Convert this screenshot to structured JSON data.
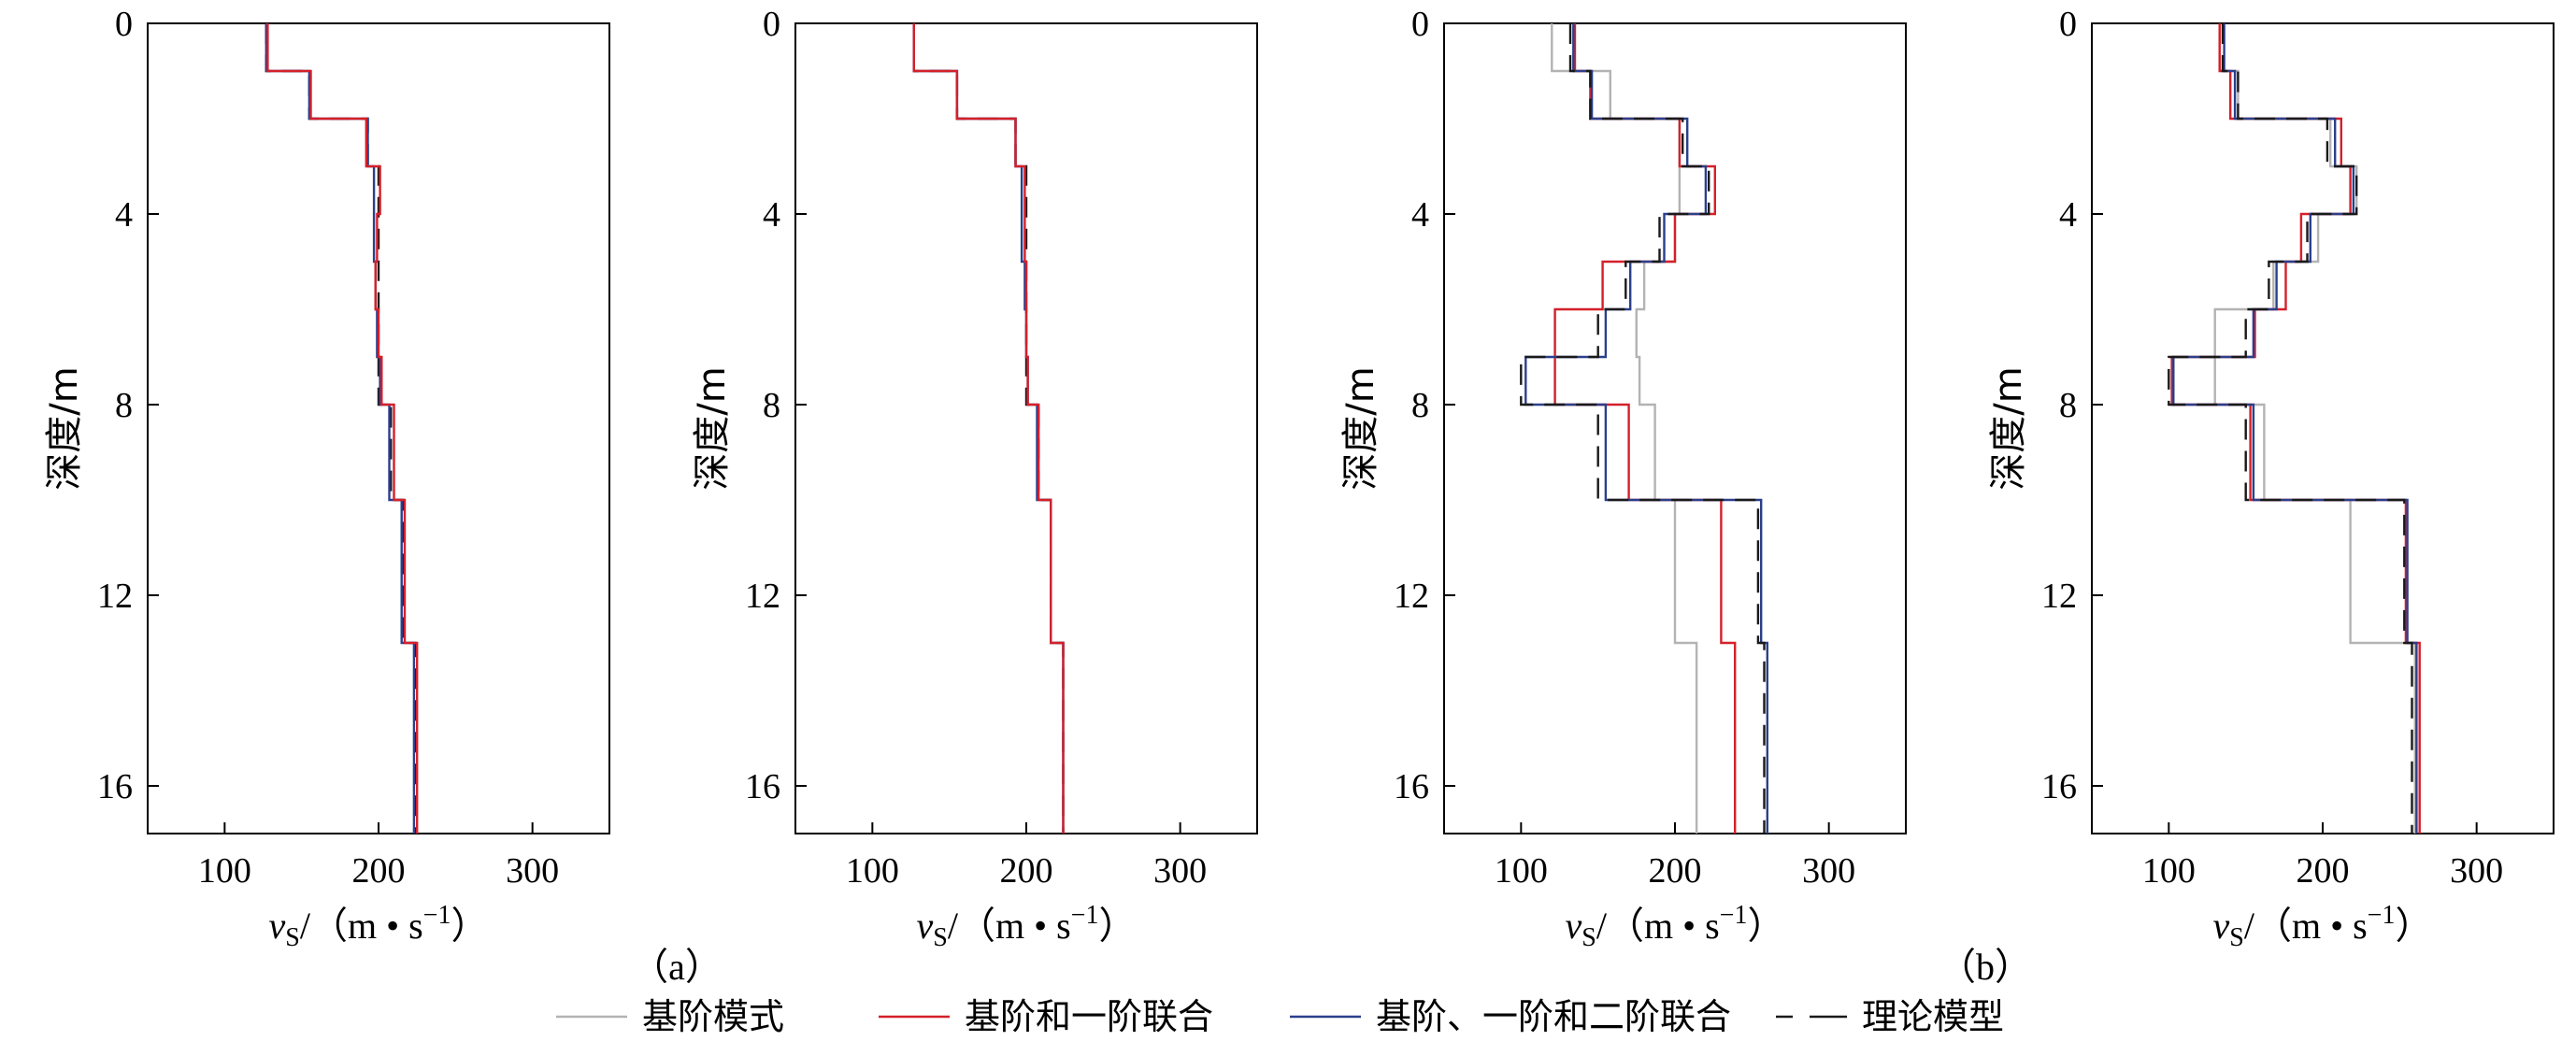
{
  "chart_data": [
    {
      "type": "line",
      "ylabel": "深度/m",
      "xlabel_main": "v",
      "xlabel_sub": "S",
      "xlabel_unit": "/（m • s",
      "xlabel_exp": "−1",
      "xlabel_close": "）",
      "xlim": [
        50,
        350
      ],
      "ylim": [
        0,
        17
      ],
      "xticks": [
        100,
        200,
        300
      ],
      "yticks": [
        0,
        4,
        8,
        12,
        16
      ],
      "yinverted": true,
      "series": [
        {
          "key": "model",
          "color": "#1a1a1a",
          "dash": "22,12",
          "layers": [
            [
              0,
              1,
              127
            ],
            [
              1,
              2,
              155
            ],
            [
              2,
              3,
              193
            ],
            [
              3,
              6,
              200
            ],
            [
              6,
              8,
              200
            ],
            [
              8,
              10,
              208
            ],
            [
              10,
              13,
              216
            ],
            [
              13,
              17,
              224
            ]
          ]
        },
        {
          "key": "mode012",
          "color": "#2b3f8c",
          "dash": "",
          "layers": [
            [
              0,
              1,
              127
            ],
            [
              1,
              2,
              155
            ],
            [
              2,
              3,
              193
            ],
            [
              3,
              5,
              197
            ],
            [
              5,
              6,
              198
            ],
            [
              6,
              7,
              199
            ],
            [
              7,
              8,
              201
            ],
            [
              8,
              10,
              207
            ],
            [
              10,
              13,
              215
            ],
            [
              13,
              17,
              223
            ]
          ]
        },
        {
          "key": "mode01",
          "color": "#d4202a",
          "dash": "",
          "layers": [
            [
              0,
              1,
              128
            ],
            [
              1,
              2,
              156
            ],
            [
              2,
              3,
              192
            ],
            [
              3,
              4,
              201
            ],
            [
              4,
              5,
              199
            ],
            [
              5,
              6,
              198
            ],
            [
              6,
              7,
              200
            ],
            [
              7,
              8,
              202
            ],
            [
              8,
              10,
              210
            ],
            [
              10,
              13,
              217
            ],
            [
              13,
              17,
              225
            ]
          ]
        }
      ]
    },
    {
      "type": "line",
      "ylabel": "深度/m",
      "xlabel_main": "v",
      "xlabel_sub": "S",
      "xlabel_unit": "/（m • s",
      "xlabel_exp": "−1",
      "xlabel_close": "）",
      "xlim": [
        50,
        350
      ],
      "ylim": [
        0,
        17
      ],
      "xticks": [
        100,
        200,
        300
      ],
      "yticks": [
        0,
        4,
        8,
        12,
        16
      ],
      "yinverted": true,
      "series": [
        {
          "key": "model",
          "color": "#1a1a1a",
          "dash": "22,12",
          "layers": [
            [
              0,
              1,
              127
            ],
            [
              1,
              2,
              155
            ],
            [
              2,
              3,
              193
            ],
            [
              3,
              6,
              200
            ],
            [
              6,
              8,
              200
            ],
            [
              8,
              10,
              208
            ],
            [
              10,
              13,
              216
            ],
            [
              13,
              17,
              224
            ]
          ]
        },
        {
          "key": "mode012",
          "color": "#2b3f8c",
          "dash": "",
          "layers": [
            [
              0,
              1,
              127
            ],
            [
              1,
              2,
              155
            ],
            [
              2,
              3,
              193
            ],
            [
              3,
              5,
              197
            ],
            [
              5,
              6,
              199
            ],
            [
              6,
              7,
              200
            ],
            [
              7,
              8,
              201
            ],
            [
              8,
              10,
              207
            ],
            [
              10,
              13,
              216
            ],
            [
              13,
              17,
              224
            ]
          ]
        },
        {
          "key": "mode01",
          "color": "#d4202a",
          "dash": "",
          "layers": [
            [
              0,
              1,
              127
            ],
            [
              1,
              2,
              155
            ],
            [
              2,
              3,
              193
            ],
            [
              3,
              4,
              199
            ],
            [
              4,
              5,
              199
            ],
            [
              5,
              6,
              200
            ],
            [
              6,
              7,
              200
            ],
            [
              7,
              8,
              201
            ],
            [
              8,
              10,
              208
            ],
            [
              10,
              13,
              216
            ],
            [
              13,
              17,
              224
            ]
          ]
        }
      ]
    },
    {
      "type": "line",
      "ylabel": "深度/m",
      "xlabel_main": "v",
      "xlabel_sub": "S",
      "xlabel_unit": "/（m • s",
      "xlabel_exp": "−1",
      "xlabel_close": "）",
      "xlim": [
        50,
        350
      ],
      "ylim": [
        0,
        17
      ],
      "xticks": [
        100,
        200,
        300
      ],
      "yticks": [
        0,
        4,
        8,
        12,
        16
      ],
      "yinverted": true,
      "series": [
        {
          "key": "mode0",
          "color": "#b3b3b3",
          "dash": "",
          "layers": [
            [
              0,
              1,
              120
            ],
            [
              1,
              2,
              158
            ],
            [
              2,
              3,
              203
            ],
            [
              3,
              4,
              203
            ],
            [
              4,
              5,
              200
            ],
            [
              5,
              6,
              180
            ],
            [
              6,
              7,
              175
            ],
            [
              7,
              8,
              177
            ],
            [
              8,
              10,
              187
            ],
            [
              10,
              13,
              200
            ],
            [
              13,
              17,
              214
            ]
          ]
        },
        {
          "key": "mode01",
          "color": "#d4202a",
          "dash": "",
          "layers": [
            [
              0,
              1,
              135
            ],
            [
              1,
              2,
              145
            ],
            [
              2,
              3,
              203
            ],
            [
              3,
              4,
              226
            ],
            [
              4,
              5,
              200
            ],
            [
              5,
              6,
              153
            ],
            [
              6,
              7,
              122
            ],
            [
              7,
              8,
              122
            ],
            [
              8,
              10,
              170
            ],
            [
              10,
              13,
              230
            ],
            [
              13,
              17,
              239
            ]
          ]
        },
        {
          "key": "mode012",
          "color": "#2b3f8c",
          "dash": "",
          "layers": [
            [
              0,
              1,
              134
            ],
            [
              1,
              2,
              146
            ],
            [
              2,
              3,
              208
            ],
            [
              3,
              4,
              220
            ],
            [
              4,
              5,
              193
            ],
            [
              5,
              6,
              171
            ],
            [
              6,
              7,
              155
            ],
            [
              7,
              8,
              103
            ],
            [
              8,
              10,
              155
            ],
            [
              10,
              13,
              256
            ],
            [
              13,
              17,
              260
            ]
          ]
        },
        {
          "key": "model",
          "color": "#1a1a1a",
          "dash": "22,12",
          "layers": [
            [
              0,
              1,
              132
            ],
            [
              1,
              2,
              145
            ],
            [
              2,
              3,
              205
            ],
            [
              3,
              4,
              222
            ],
            [
              4,
              5,
              190
            ],
            [
              5,
              6,
              168
            ],
            [
              6,
              7,
              150
            ],
            [
              7,
              8,
              100
            ],
            [
              8,
              10,
              150
            ],
            [
              10,
              13,
              254
            ],
            [
              13,
              17,
              258
            ]
          ]
        }
      ]
    },
    {
      "type": "line",
      "ylabel": "深度/m",
      "xlabel_main": "v",
      "xlabel_sub": "S",
      "xlabel_unit": "/（m • s",
      "xlabel_exp": "−1",
      "xlabel_close": "）",
      "xlim": [
        50,
        350
      ],
      "ylim": [
        0,
        17
      ],
      "xticks": [
        100,
        200,
        300
      ],
      "yticks": [
        0,
        4,
        8,
        12,
        16
      ],
      "yinverted": true,
      "series": [
        {
          "key": "mode0",
          "color": "#b3b3b3",
          "dash": "",
          "layers": [
            [
              0,
              1,
              133
            ],
            [
              1,
              2,
              145
            ],
            [
              2,
              3,
              205
            ],
            [
              3,
              4,
              222
            ],
            [
              4,
              5,
              197
            ],
            [
              5,
              6,
              168
            ],
            [
              6,
              7,
              130
            ],
            [
              7,
              8,
              130
            ],
            [
              8,
              10,
              162
            ],
            [
              10,
              13,
              218
            ],
            [
              13,
              17,
              260
            ]
          ]
        },
        {
          "key": "mode01",
          "color": "#d4202a",
          "dash": "",
          "layers": [
            [
              0,
              1,
              133
            ],
            [
              1,
              2,
              140
            ],
            [
              2,
              3,
              212
            ],
            [
              3,
              4,
              218
            ],
            [
              4,
              5,
              186
            ],
            [
              5,
              6,
              176
            ],
            [
              6,
              7,
              156
            ],
            [
              7,
              8,
              102
            ],
            [
              8,
              10,
              153
            ],
            [
              10,
              13,
              254
            ],
            [
              13,
              17,
              263
            ]
          ]
        },
        {
          "key": "mode012",
          "color": "#2b3f8c",
          "dash": "",
          "layers": [
            [
              0,
              1,
              136
            ],
            [
              1,
              2,
              143
            ],
            [
              2,
              3,
              208
            ],
            [
              3,
              4,
              220
            ],
            [
              4,
              5,
              192
            ],
            [
              5,
              6,
              170
            ],
            [
              6,
              7,
              155
            ],
            [
              7,
              8,
              103
            ],
            [
              8,
              10,
              155
            ],
            [
              10,
              13,
              255
            ],
            [
              13,
              17,
              261
            ]
          ]
        },
        {
          "key": "model",
          "color": "#1a1a1a",
          "dash": "22,12",
          "layers": [
            [
              0,
              1,
              135
            ],
            [
              1,
              2,
              145
            ],
            [
              2,
              3,
              203
            ],
            [
              3,
              4,
              222
            ],
            [
              4,
              5,
              190
            ],
            [
              5,
              6,
              165
            ],
            [
              6,
              7,
              150
            ],
            [
              7,
              8,
              100
            ],
            [
              8,
              10,
              150
            ],
            [
              10,
              13,
              253
            ],
            [
              13,
              17,
              258
            ]
          ]
        }
      ]
    }
  ],
  "panel_labels": [
    "（a）",
    "（b）"
  ],
  "legend": [
    {
      "key": "mode0",
      "label": "基阶模式",
      "color": "#b3b3b3",
      "dash": ""
    },
    {
      "key": "mode01",
      "label": "基阶和一阶联合",
      "color": "#d4202a",
      "dash": ""
    },
    {
      "key": "mode012",
      "label": "基阶、一阶和二阶联合",
      "color": "#2b3f8c",
      "dash": ""
    },
    {
      "key": "model",
      "label": "理论模型",
      "color": "#1a1a1a",
      "dash": "dash"
    }
  ]
}
